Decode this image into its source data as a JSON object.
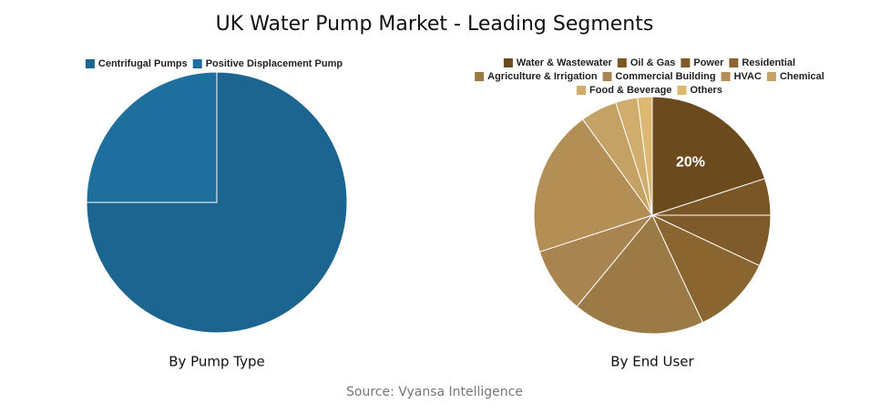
{
  "title": "UK Water Pump Market - Leading Segments",
  "source": "Source: Vyansa Intelligence",
  "chart_data": [
    {
      "type": "pie",
      "title": "By Pump Type",
      "categories": [
        "Centrifugal Pumps",
        "Positive Displacement Pump"
      ],
      "values": [
        75,
        25
      ],
      "colors": [
        "#1b6590",
        "#1f6f9e"
      ]
    },
    {
      "type": "pie",
      "title": "By End User",
      "categories": [
        "Water & Wastewater",
        "Oil & Gas",
        "Power",
        "Residential",
        "Agriculture & Irrigation",
        "Commercial Building",
        "HVAC",
        "Chemical",
        "Food & Beverage",
        "Others"
      ],
      "values": [
        20,
        5,
        7,
        11,
        18,
        9,
        20,
        5,
        3,
        2
      ],
      "value_labels": [
        "20%",
        null,
        null,
        null,
        null,
        null,
        null,
        null,
        null,
        null
      ],
      "colors": [
        "#6b4a1e",
        "#7a5626",
        "#7f5a2b",
        "#8a6530",
        "#9c7a45",
        "#a88550",
        "#b38f55",
        "#c4a165",
        "#d0ad6c",
        "#dcb870"
      ]
    }
  ]
}
